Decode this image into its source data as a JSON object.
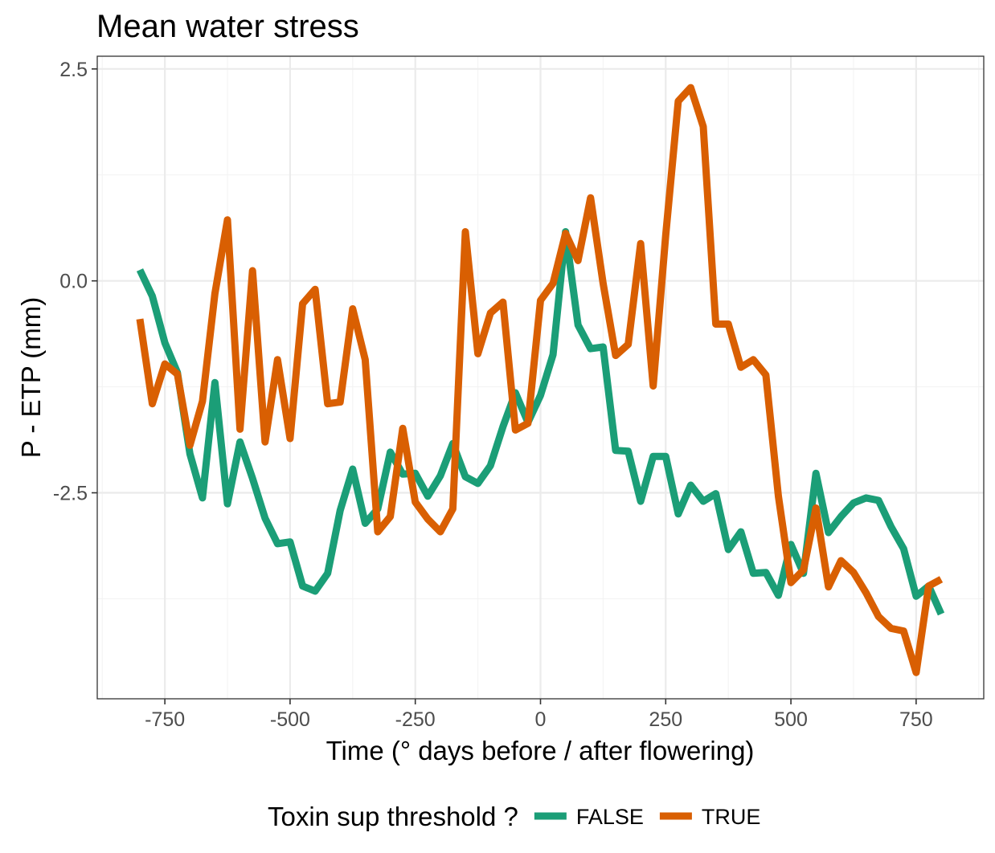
{
  "chart_data": {
    "type": "line",
    "title": "Mean water stress",
    "xlabel": "Time (° days before / after flowering)",
    "ylabel": "P - ETP (mm)",
    "xlim": [
      -885,
      885
    ],
    "ylim": [
      -4.93,
      2.65
    ],
    "x_ticks": [
      -750,
      -500,
      -250,
      0,
      250,
      500,
      750
    ],
    "x_tick_labels": [
      "-750",
      "-500",
      "-250",
      "0",
      "250",
      "500",
      "750"
    ],
    "y_ticks": [
      2.5,
      0.0,
      -2.5
    ],
    "y_tick_labels": [
      "2.5",
      "0.0",
      "-2.5"
    ],
    "grid": true,
    "legend": {
      "title": "Toxin sup threshold ?",
      "position": "bottom"
    },
    "x": [
      -800,
      -775,
      -750,
      -725,
      -700,
      -675,
      -650,
      -625,
      -600,
      -575,
      -550,
      -525,
      -500,
      -475,
      -450,
      -425,
      -400,
      -375,
      -350,
      -325,
      -300,
      -275,
      -250,
      -225,
      -200,
      -175,
      -150,
      -125,
      -100,
      -75,
      -50,
      -25,
      0,
      25,
      50,
      75,
      100,
      125,
      150,
      175,
      200,
      225,
      250,
      275,
      300,
      325,
      350,
      375,
      400,
      425,
      450,
      475,
      500,
      525,
      550,
      575,
      600,
      625,
      650,
      675,
      700,
      725,
      750,
      775,
      800
    ],
    "series": [
      {
        "name": "FALSE",
        "color": "#1b9e77",
        "values": [
          0.13,
          -0.18,
          -0.73,
          -1.08,
          -2.04,
          -2.56,
          -1.2,
          -2.63,
          -1.9,
          -2.33,
          -2.8,
          -3.1,
          -3.08,
          -3.6,
          -3.66,
          -3.45,
          -2.71,
          -2.22,
          -2.86,
          -2.69,
          -2.02,
          -2.28,
          -2.27,
          -2.54,
          -2.3,
          -1.92,
          -2.31,
          -2.39,
          -2.18,
          -1.72,
          -1.32,
          -1.67,
          -1.35,
          -0.87,
          0.58,
          -0.52,
          -0.8,
          -0.78,
          -2.0,
          -2.01,
          -2.6,
          -2.07,
          -2.07,
          -2.75,
          -2.41,
          -2.6,
          -2.51,
          -3.17,
          -2.96,
          -3.45,
          -3.44,
          -3.71,
          -3.11,
          -3.45,
          -2.27,
          -2.97,
          -2.78,
          -2.62,
          -2.56,
          -2.59,
          -2.9,
          -3.16,
          -3.72,
          -3.6,
          -3.93
        ]
      },
      {
        "name": "TRUE",
        "color": "#d95f02",
        "values": [
          -0.45,
          -1.45,
          -0.98,
          -1.1,
          -1.94,
          -1.42,
          -0.15,
          0.72,
          -1.75,
          0.12,
          -1.9,
          -0.93,
          -1.86,
          -0.27,
          -0.1,
          -1.45,
          -1.43,
          -0.33,
          -0.93,
          -2.96,
          -2.78,
          -1.74,
          -2.61,
          -2.81,
          -2.96,
          -2.69,
          0.58,
          -0.86,
          -0.38,
          -0.25,
          -1.76,
          -1.68,
          -0.23,
          -0.03,
          0.56,
          0.24,
          0.98,
          -0.03,
          -0.88,
          -0.75,
          0.44,
          -1.24,
          0.54,
          2.12,
          2.28,
          1.82,
          -0.51,
          -0.51,
          -1.02,
          -0.93,
          -1.11,
          -2.54,
          -3.56,
          -3.41,
          -2.68,
          -3.61,
          -3.3,
          -3.44,
          -3.68,
          -3.96,
          -4.1,
          -4.13,
          -4.62,
          -3.6,
          -3.52
        ]
      }
    ]
  }
}
